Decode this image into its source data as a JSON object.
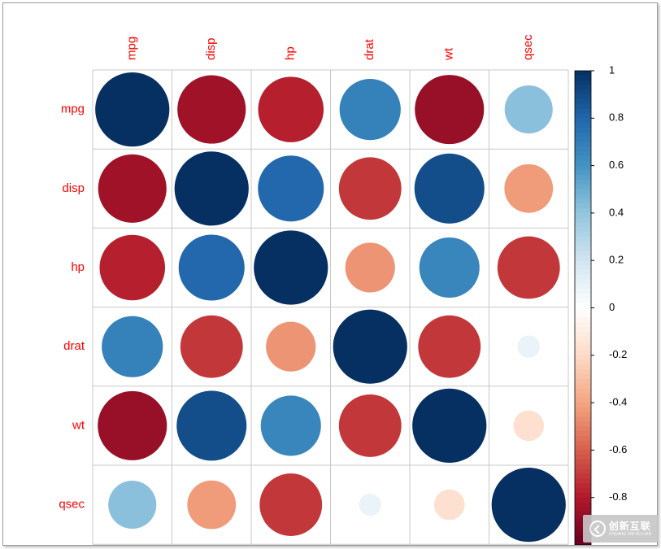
{
  "chart_data": {
    "type": "heatmap",
    "variables": [
      "mpg",
      "disp",
      "hp",
      "drat",
      "wt",
      "qsec"
    ],
    "matrix": [
      [
        1.0,
        -0.85,
        -0.78,
        0.68,
        -0.87,
        0.42
      ],
      [
        -0.85,
        1.0,
        0.79,
        -0.71,
        0.89,
        -0.43
      ],
      [
        -0.78,
        0.79,
        1.0,
        -0.45,
        0.66,
        -0.71
      ],
      [
        0.68,
        -0.71,
        -0.45,
        1.0,
        -0.71,
        0.09
      ],
      [
        -0.87,
        0.89,
        0.66,
        -0.71,
        1.0,
        -0.17
      ],
      [
        0.42,
        -0.43,
        -0.71,
        0.09,
        -0.17,
        1.0
      ]
    ],
    "colorbar": {
      "range": [
        -1,
        1
      ],
      "ticks": [
        "1",
        "0.8",
        "0.6",
        "0.4",
        "0.2",
        "0",
        "-0.2",
        "-0.4",
        "-0.6",
        "-0.8"
      ],
      "tick_values": [
        1,
        0.8,
        0.6,
        0.4,
        0.2,
        0,
        -0.2,
        -0.4,
        -0.6,
        -0.8
      ],
      "colors": {
        "-1": "#67001F",
        "-0.8": "#B2182B",
        "-0.6": "#D6604D",
        "-0.4": "#F4A582",
        "-0.2": "#FDDBC7",
        "0": "#FFFFFF",
        "0.2": "#D1E5F0",
        "0.4": "#92C5DE",
        "0.6": "#4393C3",
        "0.8": "#2166AC",
        "1": "#053061"
      }
    },
    "label_color": "#FF0000",
    "grid": true,
    "title": "",
    "xlabel": "",
    "ylabel": ""
  },
  "watermark": {
    "text_cn": "创新互联",
    "text_en": "CHUANG XIN HU LIAN"
  }
}
